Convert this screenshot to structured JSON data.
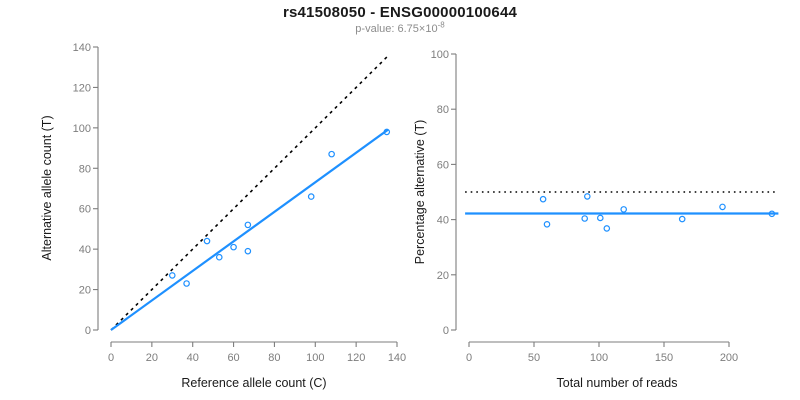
{
  "header": {
    "title": "rs41508050 - ENSG00000100644",
    "subtitle_prefix": "p-value: 6.75×10",
    "subtitle_exponent": "-8"
  },
  "colors": {
    "accent_blue": "#1E90FF",
    "line_black": "#000000",
    "axis_gray": "#7d7d7d",
    "tick_label_gray": "#7d7d7d",
    "axis_title_color": "#1a1a1a",
    "subtitle_gray": "#8c8c8c",
    "background": "#ffffff"
  },
  "chart_data": [
    {
      "id": "allele-count-scatter",
      "type": "scatter",
      "xlabel": "Reference allele count (C)",
      "ylabel": "Alternative allele count (T)",
      "xlim": [
        0,
        140
      ],
      "ylim": [
        0,
        140
      ],
      "xticks": [
        0,
        20,
        40,
        60,
        80,
        100,
        120,
        140
      ],
      "yticks": [
        0,
        20,
        40,
        60,
        80,
        100,
        120,
        140
      ],
      "grid": false,
      "legend": null,
      "points": [
        [
          30,
          27
        ],
        [
          37,
          23
        ],
        [
          47,
          44
        ],
        [
          53,
          36
        ],
        [
          60,
          41
        ],
        [
          67,
          39
        ],
        [
          67,
          52
        ],
        [
          98,
          66
        ],
        [
          108,
          87
        ],
        [
          135,
          98
        ]
      ],
      "lines": [
        {
          "name": "identity-line",
          "style": "dashed",
          "color": "#000000",
          "x1": 0,
          "y1": 0,
          "x2": 136,
          "y2": 136
        },
        {
          "name": "fit-line",
          "style": "solid",
          "color": "#1E90FF",
          "x1": 0,
          "y1": 0,
          "x2": 135.6,
          "y2": 99.1
        }
      ]
    },
    {
      "id": "percentage-vs-reads-scatter",
      "type": "scatter",
      "xlabel": "Total number of reads",
      "ylabel": "Percentage alternative (T)",
      "xlim": [
        0,
        235
      ],
      "ylim": [
        0,
        100
      ],
      "xticks": [
        0,
        50,
        100,
        150,
        200
      ],
      "yticks": [
        0,
        20,
        40,
        60,
        80,
        100
      ],
      "grid": false,
      "legend": null,
      "points": [
        [
          57,
          47.4
        ],
        [
          60,
          38.3
        ],
        [
          89,
          40.4
        ],
        [
          91,
          48.4
        ],
        [
          101,
          40.6
        ],
        [
          106,
          36.8
        ],
        [
          119,
          43.7
        ],
        [
          164,
          40.2
        ],
        [
          195,
          44.6
        ],
        [
          233,
          42.1
        ]
      ],
      "lines": [
        {
          "name": "expected-50pct-line",
          "style": "dotted",
          "color": "#000000",
          "x1": -3,
          "y1": 50,
          "x2": 238,
          "y2": 50
        },
        {
          "name": "fit-line",
          "style": "solid",
          "color": "#1E90FF",
          "x1": -3,
          "y1": 42.2,
          "x2": 238,
          "y2": 42.2
        }
      ]
    }
  ]
}
